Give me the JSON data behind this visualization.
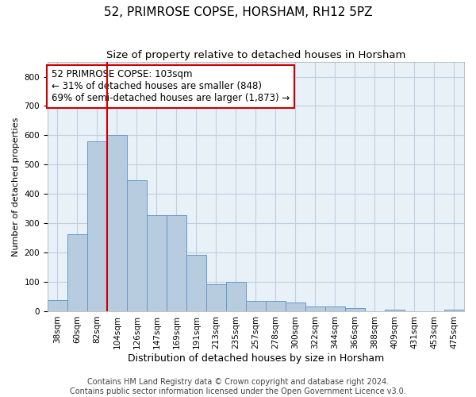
{
  "title": "52, PRIMROSE COPSE, HORSHAM, RH12 5PZ",
  "subtitle": "Size of property relative to detached houses in Horsham",
  "xlabel": "Distribution of detached houses by size in Horsham",
  "ylabel": "Number of detached properties",
  "categories": [
    "38sqm",
    "60sqm",
    "82sqm",
    "104sqm",
    "126sqm",
    "147sqm",
    "169sqm",
    "191sqm",
    "213sqm",
    "235sqm",
    "257sqm",
    "278sqm",
    "300sqm",
    "322sqm",
    "344sqm",
    "366sqm",
    "388sqm",
    "409sqm",
    "431sqm",
    "453sqm",
    "475sqm"
  ],
  "values": [
    38,
    262,
    580,
    600,
    448,
    328,
    328,
    192,
    92,
    100,
    35,
    35,
    30,
    16,
    15,
    11,
    0,
    5,
    0,
    0,
    5
  ],
  "bar_color": "#b8ccdf",
  "bar_edge_color": "#6699cc",
  "vline_x": 2.5,
  "annotation_text": "52 PRIMROSE COPSE: 103sqm\n← 31% of detached houses are smaller (848)\n69% of semi-detached houses are larger (1,873) →",
  "annotation_box_color": "#ffffff",
  "annotation_box_edge_color": "#cc0000",
  "annotation_text_color": "#000000",
  "vline_color": "#cc0000",
  "ylim": [
    0,
    850
  ],
  "yticks": [
    0,
    100,
    200,
    300,
    400,
    500,
    600,
    700,
    800
  ],
  "footer_line1": "Contains HM Land Registry data © Crown copyright and database right 2024.",
  "footer_line2": "Contains public sector information licensed under the Open Government Licence v3.0.",
  "background_color": "#ffffff",
  "plot_bg_color": "#e8f0f8",
  "grid_color": "#c0d0e0",
  "title_fontsize": 11,
  "subtitle_fontsize": 9.5,
  "ylabel_fontsize": 8,
  "xlabel_fontsize": 9,
  "tick_fontsize": 7.5,
  "annotation_fontsize": 8.5,
  "footer_fontsize": 7
}
